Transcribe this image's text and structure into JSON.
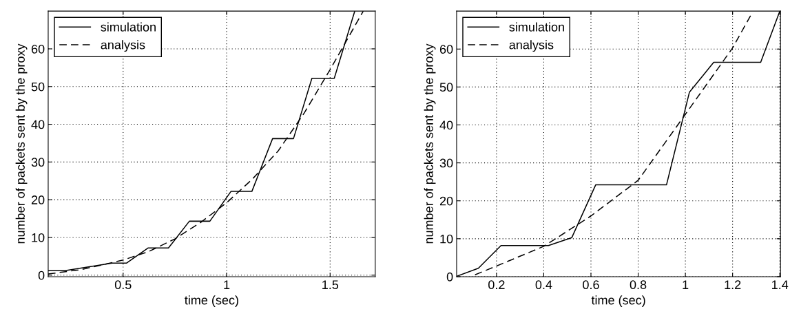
{
  "chart_data": [
    {
      "type": "line",
      "xlabel": "time (sec)",
      "ylabel": "number of packets sent by the proxy",
      "xlim": [
        0.138,
        1.718
      ],
      "ylim": [
        -0.4,
        70
      ],
      "xticks": [
        {
          "value": 0.5,
          "label": "0.5"
        },
        {
          "value": 1,
          "label": "1"
        },
        {
          "value": 1.5,
          "label": "1.5"
        }
      ],
      "yticks": [
        0,
        10,
        20,
        30,
        40,
        50,
        60
      ],
      "grid": true,
      "legend": "top left",
      "series": [
        {
          "name": "simulation",
          "color": "#000000",
          "line_style": "solid",
          "x": [
            0.138,
            0.218,
            0.447,
            0.517,
            0.62,
            0.719,
            0.82,
            0.919,
            1.021,
            1.122,
            1.222,
            1.323,
            1.412,
            1.52,
            1.619
          ],
          "values": [
            1.2,
            1.2,
            3.2,
            3.2,
            7.2,
            7.2,
            14.3,
            14.3,
            22.2,
            22.2,
            36.2,
            36.2,
            52.2,
            52.2,
            70
          ]
        },
        {
          "name": "analysis",
          "color": "#000000",
          "line_style": "dashed",
          "x": [
            0.138,
            0.3,
            0.5,
            0.625,
            0.75,
            0.875,
            1.0,
            1.125,
            1.25,
            1.375,
            1.5,
            1.66
          ],
          "values": [
            0.3,
            1.5,
            4,
            6.3,
            9.6,
            14,
            19.2,
            25.5,
            33,
            43,
            54.5,
            70
          ]
        }
      ]
    },
    {
      "type": "line",
      "xlabel": "time (sec)",
      "ylabel": "number of packets sent by the proxy",
      "xlim": [
        0.031,
        1.403
      ],
      "ylim": [
        0,
        70
      ],
      "xticks": [
        0.2,
        0.4,
        0.6,
        0.8,
        {
          "value": 1,
          "label": "1"
        },
        1.2,
        1.4
      ],
      "yticks": [
        0,
        10,
        20,
        30,
        40,
        50,
        60
      ],
      "grid": true,
      "legend": "top left",
      "series": [
        {
          "name": "simulation",
          "color": "#000000",
          "line_style": "solid",
          "x": [
            0.031,
            0.123,
            0.219,
            0.42,
            0.519,
            0.62,
            0.92,
            1.017,
            1.12,
            1.319,
            1.4
          ],
          "values": [
            0.1,
            2.2,
            8.2,
            8.2,
            10.3,
            24.2,
            24.2,
            48.6,
            56.5,
            56.5,
            70
          ]
        },
        {
          "name": "analysis",
          "color": "#000000",
          "line_style": "dashed",
          "x": [
            0.109,
            0.2,
            0.4,
            0.6,
            0.8,
            1.0,
            1.2,
            1.276
          ],
          "values": [
            0.5,
            2.8,
            8,
            16,
            25.4,
            42.8,
            60.3,
            68.8
          ]
        }
      ]
    }
  ]
}
